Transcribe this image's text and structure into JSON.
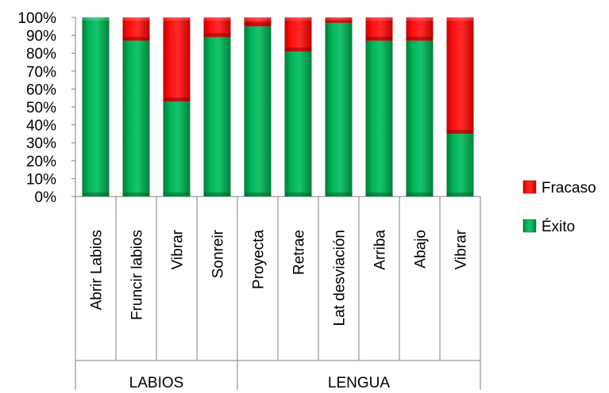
{
  "chart_data": {
    "type": "bar",
    "stacked": true,
    "percent_stacked": true,
    "title": "",
    "xlabel": "",
    "ylabel": "",
    "ylim": [
      0,
      100
    ],
    "y_ticks": [
      "0%",
      "10%",
      "20%",
      "30%",
      "40%",
      "50%",
      "60%",
      "70%",
      "80%",
      "90%",
      "100%"
    ],
    "grid": false,
    "legend_position": "right",
    "groups": [
      {
        "label": "LABIOS",
        "categories": [
          "Abrir Labios",
          "Fruncir labios",
          "Vibrar",
          "Sonreir"
        ]
      },
      {
        "label": "LENGUA",
        "categories": [
          "Proyecta",
          "Retrae",
          "Lat desviación",
          "Arriba",
          "Abajo",
          "Vibrar"
        ]
      }
    ],
    "categories": [
      "Abrir Labios",
      "Fruncir labios",
      "Vibrar",
      "Sonreir",
      "Proyecta",
      "Retrae",
      "Lat desviación",
      "Arriba",
      "Abajo",
      "Vibrar"
    ],
    "series": [
      {
        "name": "Éxito",
        "color": "#00A651",
        "values": [
          100,
          87,
          53,
          89,
          95,
          81,
          97,
          87,
          87,
          35
        ]
      },
      {
        "name": "Fracaso",
        "color": "#FF0000",
        "values": [
          0,
          13,
          47,
          11,
          5,
          19,
          3,
          13,
          13,
          65
        ]
      }
    ],
    "legend": [
      "Fracaso",
      "Éxito"
    ]
  }
}
